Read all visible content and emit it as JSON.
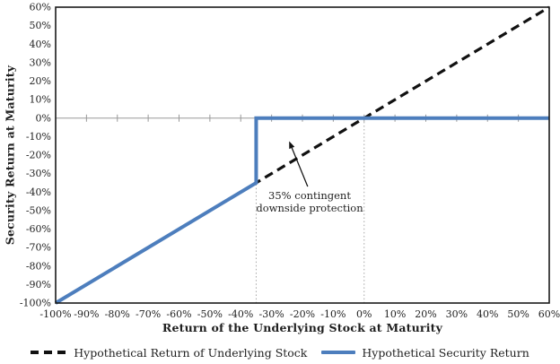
{
  "chart_data": {
    "type": "line",
    "title": "",
    "xlabel": "Return of the Underlying Stock at Maturity",
    "ylabel": "Security Return at Maturity",
    "xlim": [
      -100,
      60
    ],
    "ylim": [
      -100,
      60
    ],
    "x_ticks": [
      -100,
      -90,
      -80,
      -70,
      -60,
      -50,
      -40,
      -30,
      -20,
      -10,
      0,
      10,
      20,
      30,
      40,
      50,
      60
    ],
    "y_ticks": [
      60,
      50,
      40,
      30,
      20,
      10,
      0,
      -10,
      -20,
      -30,
      -40,
      -50,
      -60,
      -70,
      -80,
      -90,
      -100
    ],
    "tick_suffix": "%",
    "grid": "none",
    "zero_line_y": 0,
    "series": [
      {
        "name": "Hypothetical Return of Underlying Stock",
        "style": "dashed",
        "color": "#111111",
        "points": [
          [
            -100,
            -100
          ],
          [
            60,
            60
          ]
        ]
      },
      {
        "name": "Hypothetical Security Return",
        "style": "solid",
        "color": "#4d7ebd",
        "points": [
          [
            -100,
            -100
          ],
          [
            -35,
            -35
          ],
          [
            -35,
            0
          ],
          [
            60,
            0
          ]
        ]
      }
    ],
    "reference_lines": [
      {
        "axis": "x",
        "value": -35,
        "y_from": 0,
        "y_to": -100,
        "style": "dotted"
      },
      {
        "axis": "x",
        "value": 0,
        "y_from": 0,
        "y_to": -100,
        "style": "dotted"
      }
    ],
    "annotation": {
      "text_line1": "35% contingent",
      "text_line2": "downside protection",
      "arrow_from": [
        -18.3,
        -37.0
      ],
      "arrow_to": [
        -24.3,
        -12.5
      ]
    },
    "legend": {
      "position": "bottom",
      "items": [
        {
          "label": "Hypothetical Return of Underlying Stock",
          "marker": "dashed-line",
          "color": "#111111"
        },
        {
          "label": "Hypothetical Security Return",
          "marker": "solid-line",
          "color": "#4d7ebd"
        }
      ]
    },
    "colors": {
      "security_line": "#4d7ebd",
      "underlying_line": "#111111",
      "axis_border": "#1a1a1a",
      "zero_line": "#999999",
      "tick_mark": "#999999",
      "dotted_guide": "#a6a6a6",
      "text": "#1f1f1f"
    }
  }
}
